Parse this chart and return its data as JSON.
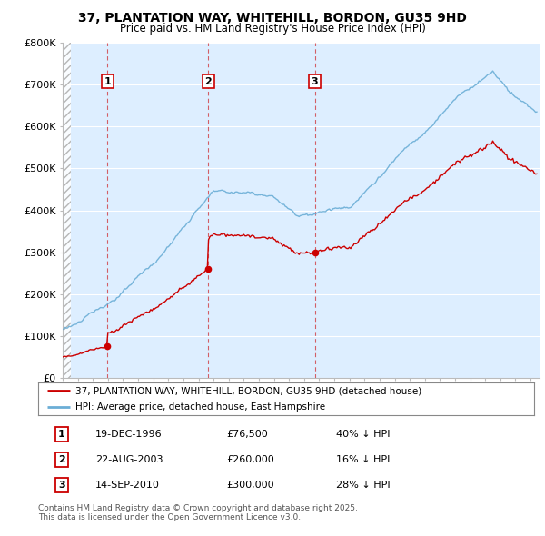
{
  "title1": "37, PLANTATION WAY, WHITEHILL, BORDON, GU35 9HD",
  "title2": "Price paid vs. HM Land Registry's House Price Index (HPI)",
  "ylim": [
    0,
    800000
  ],
  "yticks": [
    0,
    100000,
    200000,
    300000,
    400000,
    500000,
    600000,
    700000,
    800000
  ],
  "ytick_labels": [
    "£0",
    "£100K",
    "£200K",
    "£300K",
    "£400K",
    "£500K",
    "£600K",
    "£700K",
    "£800K"
  ],
  "legend_line1": "37, PLANTATION WAY, WHITEHILL, BORDON, GU35 9HD (detached house)",
  "legend_line2": "HPI: Average price, detached house, East Hampshire",
  "purchases": [
    {
      "label": "1",
      "date": "19-DEC-1996",
      "year": 1996.96,
      "price": 76500,
      "pct": "40% ↓ HPI"
    },
    {
      "label": "2",
      "date": "22-AUG-2003",
      "year": 2003.64,
      "price": 260000,
      "pct": "16% ↓ HPI"
    },
    {
      "label": "3",
      "date": "14-SEP-2010",
      "year": 2010.71,
      "price": 300000,
      "pct": "28% ↓ HPI"
    }
  ],
  "footer": "Contains HM Land Registry data © Crown copyright and database right 2025.\nThis data is licensed under the Open Government Licence v3.0.",
  "hpi_color": "#6baed6",
  "price_color": "#cc0000",
  "bg_color": "#ffffff",
  "plot_bg_color": "#ddeeff",
  "grid_color": "#ffffff"
}
